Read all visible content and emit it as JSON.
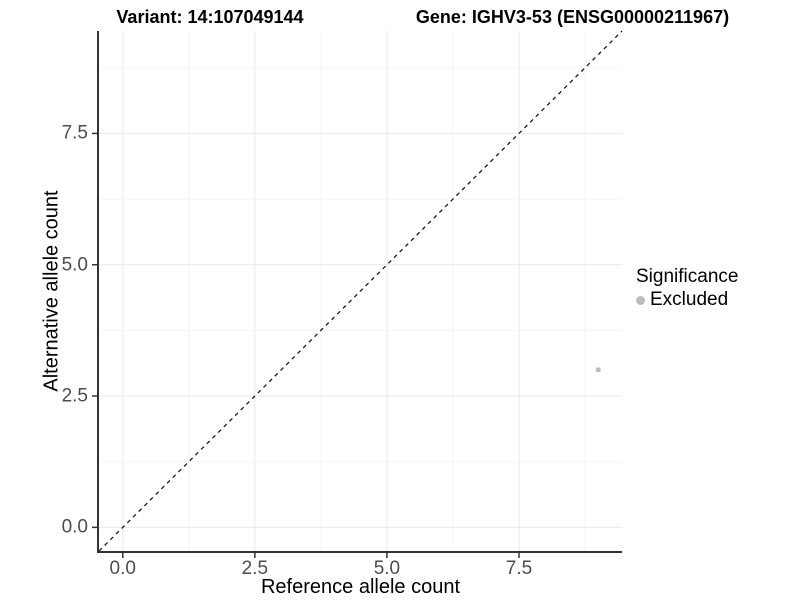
{
  "titles": {
    "variant": "Variant: 14:107049144",
    "gene": "Gene: IGHV3-53 (ENSG00000211967)"
  },
  "axes": {
    "x": {
      "label": "Reference allele count",
      "tick_labels": [
        "0.0",
        "2.5",
        "5.0",
        "7.5"
      ]
    },
    "y": {
      "label": "Alternative allele count",
      "tick_labels": [
        "0.0",
        "2.5",
        "5.0",
        "7.5"
      ]
    }
  },
  "legend": {
    "title": "Significance",
    "items": [
      {
        "label": "Excluded",
        "color": "#bdbdbd"
      }
    ]
  },
  "colors": {
    "point": "#bdbdbd",
    "axis_line": "#333333",
    "grid_major": "#e9e9e9",
    "grid_minor": "#f5f5f5",
    "reference_line": "#1a1a1a",
    "tick_text": "#4d4d4d"
  },
  "chart_data": {
    "type": "scatter",
    "title": "Variant: 14:107049144 — Gene: IGHV3-53 (ENSG00000211967)",
    "xlabel": "Reference allele count",
    "ylabel": "Alternative allele count",
    "xlim": [
      -0.45,
      9.45
    ],
    "ylim": [
      -0.45,
      9.45
    ],
    "x_ticks": [
      0.0,
      2.5,
      5.0,
      7.5
    ],
    "y_ticks": [
      0.0,
      2.5,
      5.0,
      7.5
    ],
    "grid": true,
    "legend_position": "right",
    "reference_line": {
      "style": "dashed",
      "slope": 1,
      "intercept": 0
    },
    "series": [
      {
        "name": "Excluded",
        "color": "#bdbdbd",
        "points": [
          {
            "x": 9,
            "y": 3
          }
        ]
      }
    ]
  }
}
